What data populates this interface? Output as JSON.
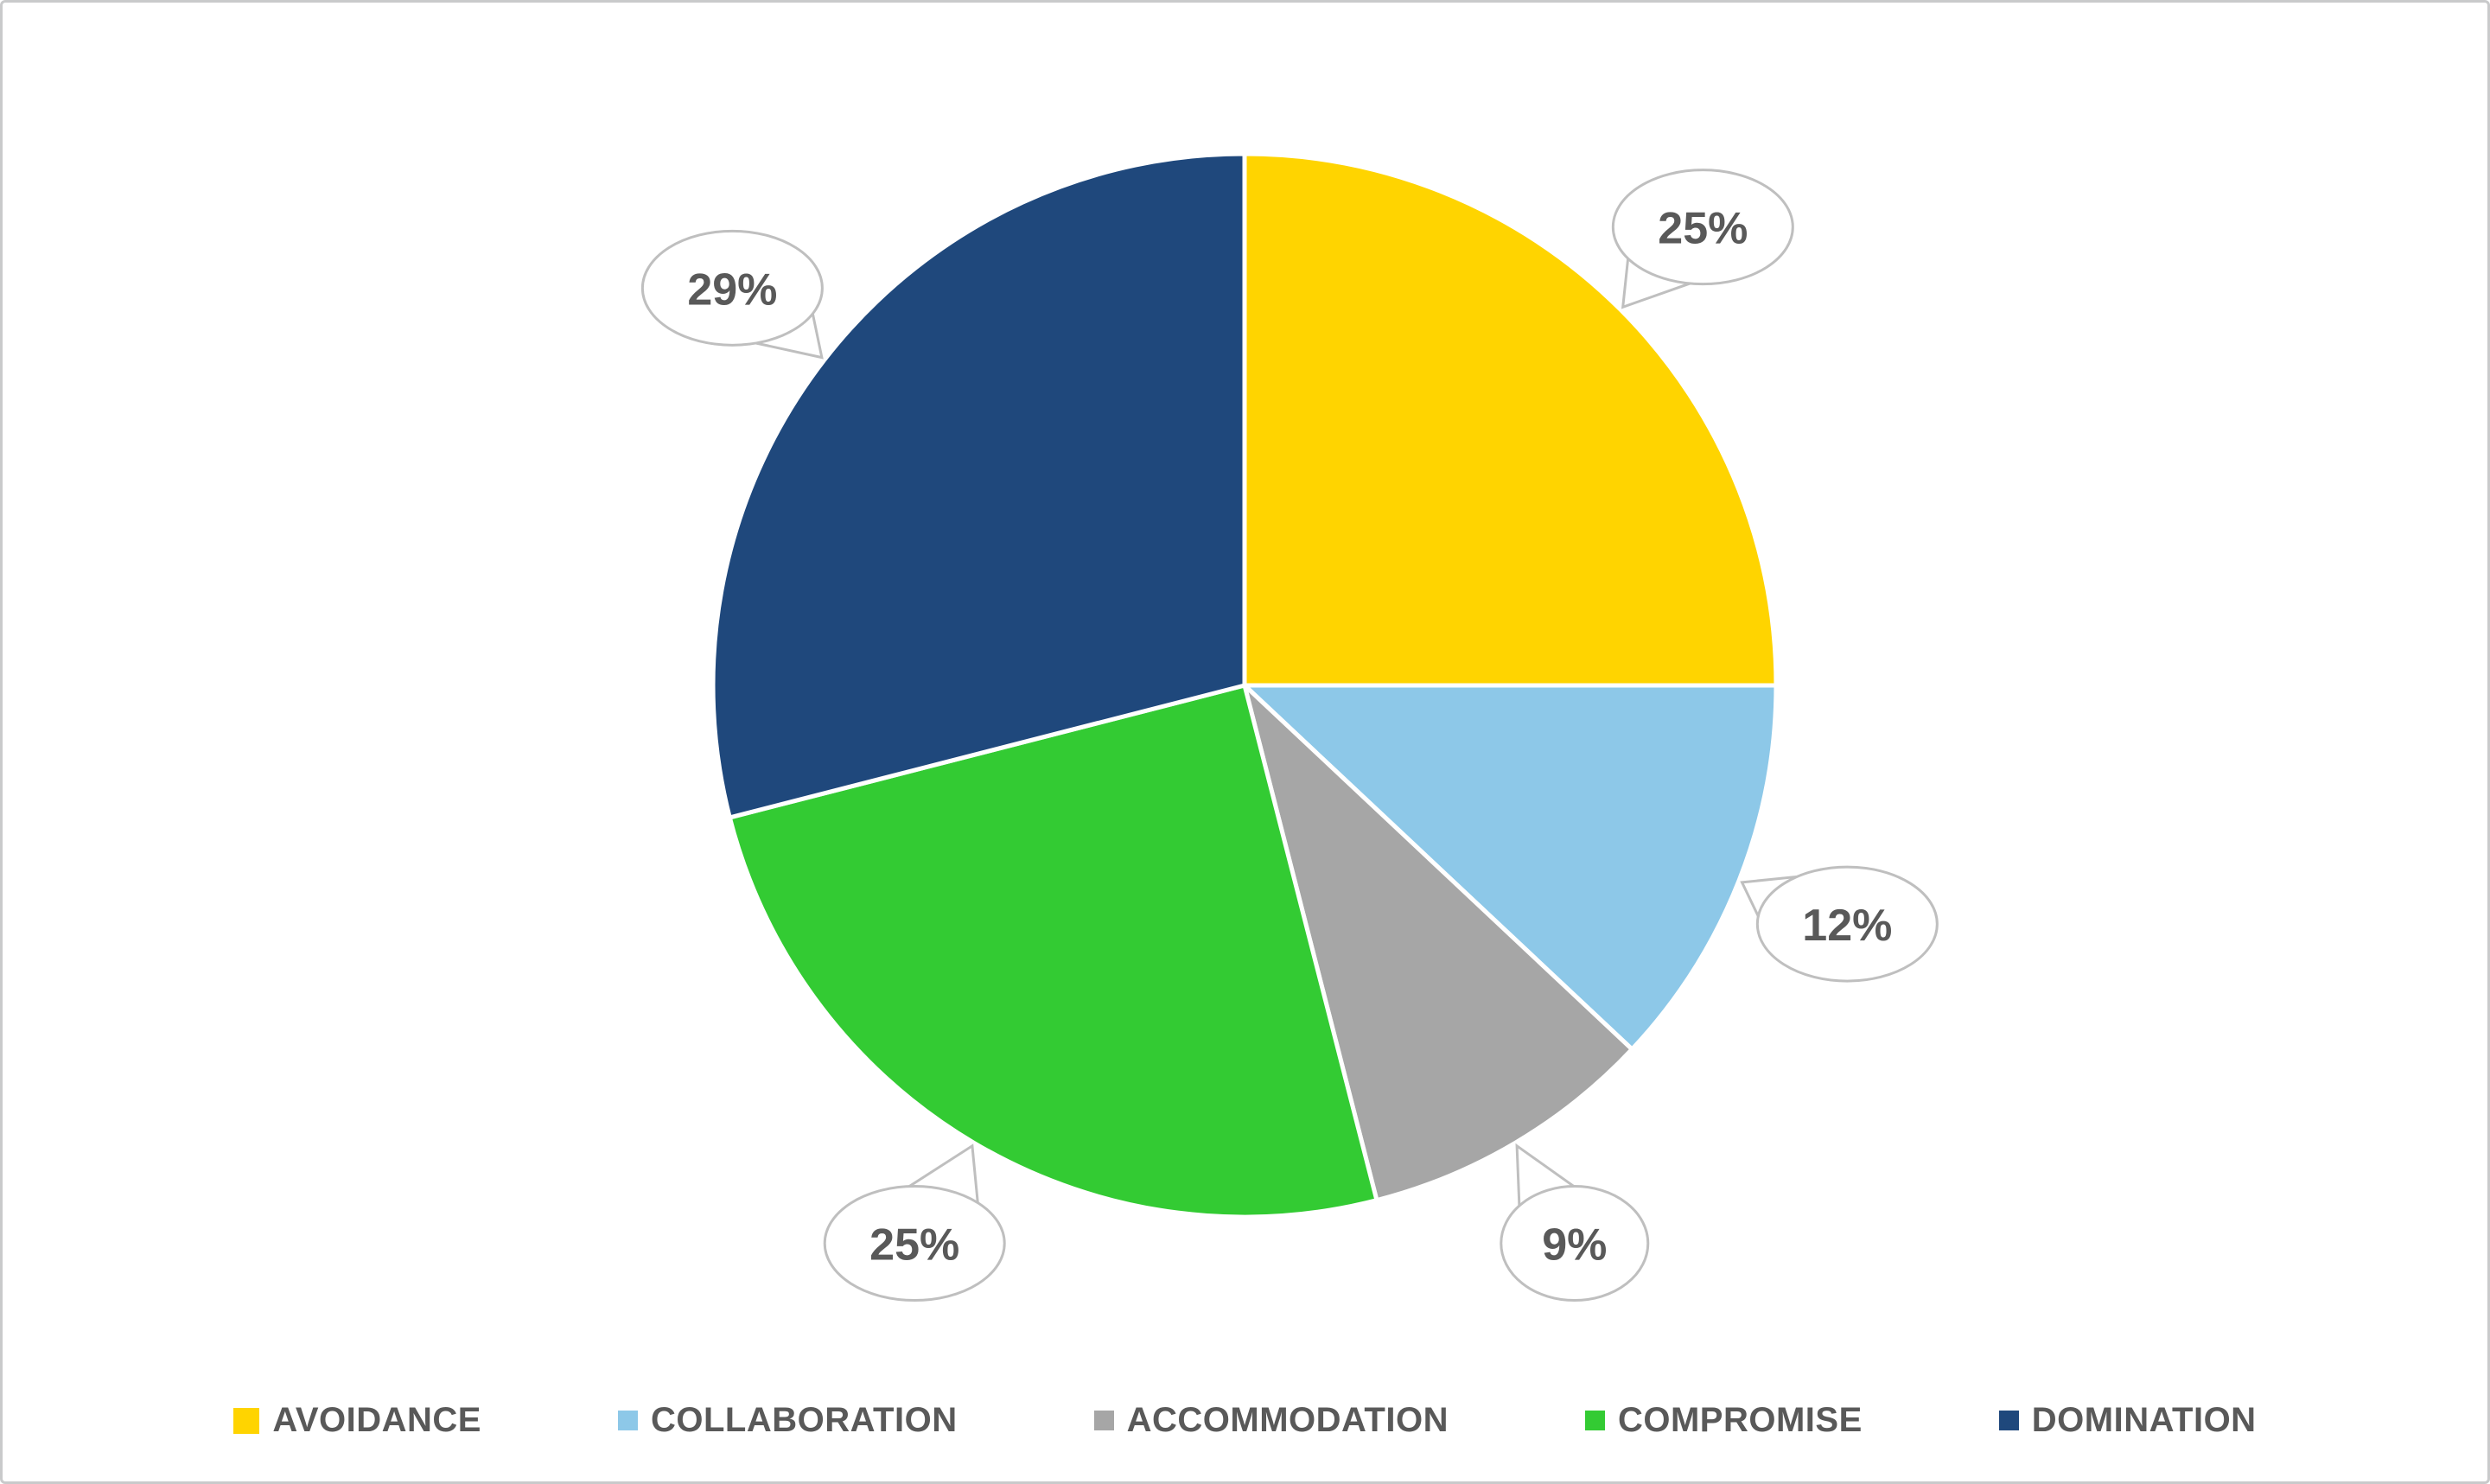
{
  "frame": {
    "background": "#FFFFFF",
    "border_color": "#C9CACB"
  },
  "chart_data": {
    "type": "pie",
    "title": "",
    "categories": [
      "AVOIDANCE",
      "COLLABORATION",
      "ACCOMMODATION",
      "COMPROMISE",
      "DOMINATION"
    ],
    "values": [
      25,
      12,
      9,
      25,
      29
    ],
    "data_labels": [
      "25%",
      "12%",
      "9%",
      "25%",
      "29%"
    ],
    "colors": [
      "#FFD400",
      "#8DC8E8",
      "#A6A6A6",
      "#33CB33",
      "#1F487C"
    ],
    "start_angle": "12 o'clock",
    "direction": "clockwise",
    "slice_border_color": "#FFFFFF",
    "label_style": "callout-bubble",
    "callout": {
      "fill": "#FFFFFF",
      "stroke": "#BFBFBF",
      "text_color": "#595959"
    },
    "legend": {
      "position": "bottom",
      "text_color": "#595959"
    }
  }
}
